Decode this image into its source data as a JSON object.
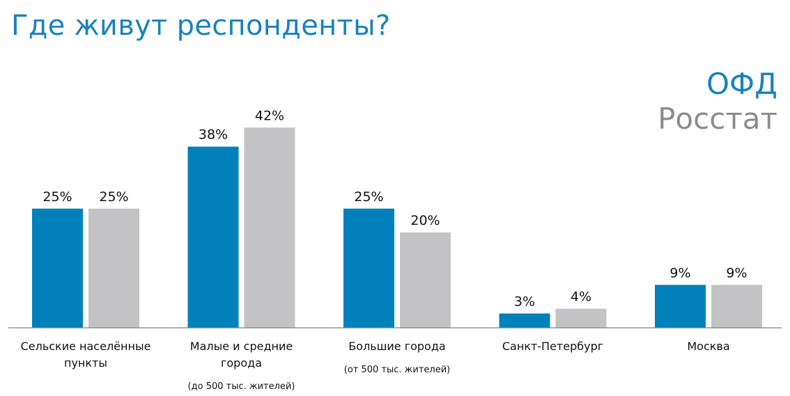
{
  "title": "Где живут респонденты?",
  "chart_data": {
    "type": "bar",
    "title": "Где живут респонденты?",
    "xlabel": "",
    "ylabel": "",
    "ylim": [
      0,
      50
    ],
    "grid": false,
    "legend_position": "top-right",
    "categories": [
      [
        "Сельские населённые",
        "пункты"
      ],
      [
        "Малые и средние",
        "города"
      ],
      [
        "Большие города"
      ],
      [
        "Санкт-Петербург"
      ],
      [
        "Москва"
      ]
    ],
    "category_notes": [
      "",
      "(до 500 тыс. жителей)",
      "(от 500 тыс. жителей)",
      "",
      ""
    ],
    "series": [
      {
        "name": "ОФД",
        "color": "#0081bc",
        "values": [
          25,
          38,
          25,
          3,
          9
        ],
        "labels": [
          "25%",
          "38%",
          "25%",
          "3%",
          "9%"
        ]
      },
      {
        "name": "Росстат",
        "color": "#c3c3c5",
        "values": [
          25,
          42,
          20,
          4,
          9
        ],
        "labels": [
          "25%",
          "42%",
          "20%",
          "4%",
          "9%"
        ]
      }
    ]
  }
}
